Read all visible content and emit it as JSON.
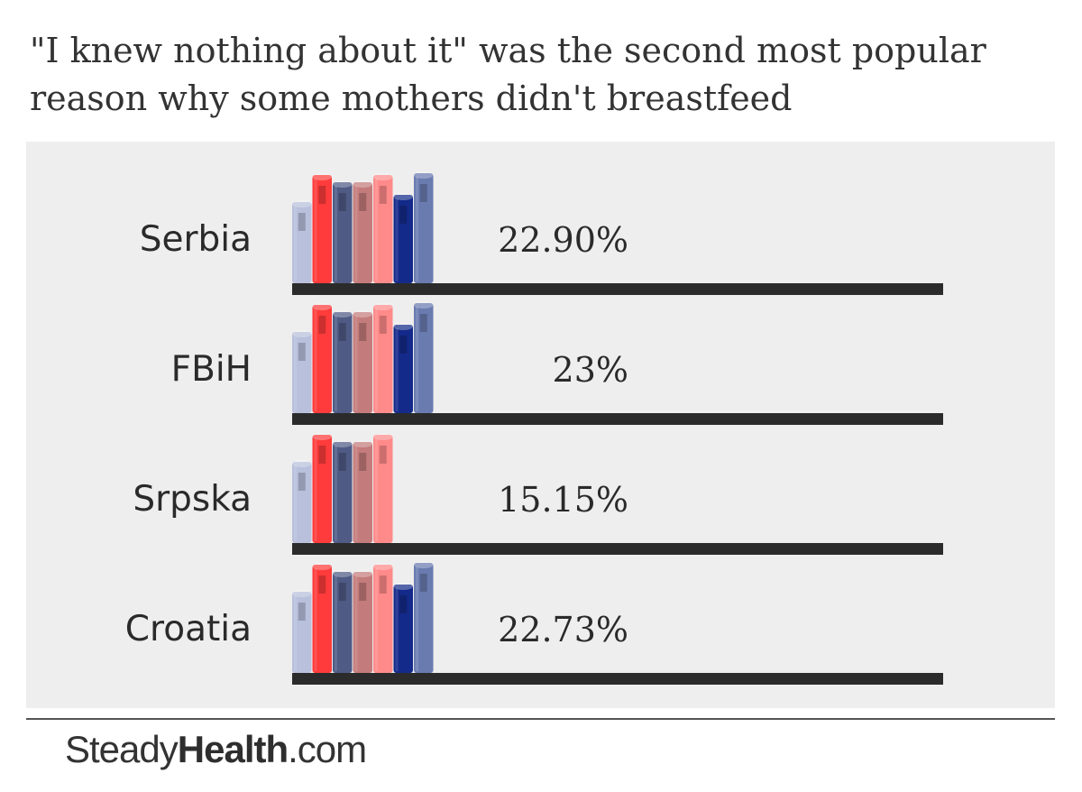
{
  "chart_data": {
    "type": "bar",
    "title": "\"I knew nothing about it\" was the second most popular reason why some mothers didn't breastfeed",
    "categories": [
      "Serbia",
      "FBiH",
      "Srpska",
      "Croatia"
    ],
    "values": [
      22.9,
      23,
      15.15,
      22.73
    ],
    "value_labels": [
      "22.90%",
      "23%",
      "15.15%",
      "22.73%"
    ],
    "xlim": [
      0,
      100
    ],
    "unit": "%",
    "book_colors": [
      "#b8c0dc",
      "#ff3b3b",
      "#4f5b85",
      "#c47b7b",
      "#ff8a8a",
      "#142a8a",
      "#6a7bb0",
      "#ff8c8c",
      "#182c8c"
    ],
    "shelf_color": "#2b2b2b"
  },
  "footer": {
    "brand_regular_1": "Steady",
    "brand_bold": "Health",
    "brand_regular_2": ".com"
  }
}
